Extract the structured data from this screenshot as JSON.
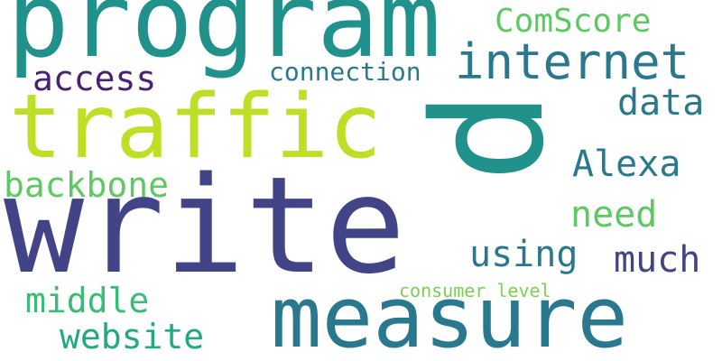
{
  "words": [
    {
      "text": "p",
      "color": "#21918c"
    },
    {
      "text": "write",
      "color": "#414487"
    },
    {
      "text": "program",
      "color": "#21918c"
    },
    {
      "text": "traffic",
      "color": "#bddf26"
    },
    {
      "text": "measure",
      "color": "#2a788e"
    },
    {
      "text": "internet",
      "color": "#2a788e"
    },
    {
      "text": "ComScore",
      "color": "#5ec962"
    },
    {
      "text": "access",
      "color": "#482173"
    },
    {
      "text": "connection",
      "color": "#2a788e"
    },
    {
      "text": "data",
      "color": "#2a788e"
    },
    {
      "text": "Alexa",
      "color": "#2a788e"
    },
    {
      "text": "backbone",
      "color": "#5ec962"
    },
    {
      "text": "need",
      "color": "#5ec962"
    },
    {
      "text": "using",
      "color": "#2a788e"
    },
    {
      "text": "much",
      "color": "#414487"
    },
    {
      "text": "middle",
      "color": "#3bbb75"
    },
    {
      "text": "website",
      "color": "#22a884"
    },
    {
      "text": "consumer level",
      "color": "#7ad151"
    }
  ]
}
